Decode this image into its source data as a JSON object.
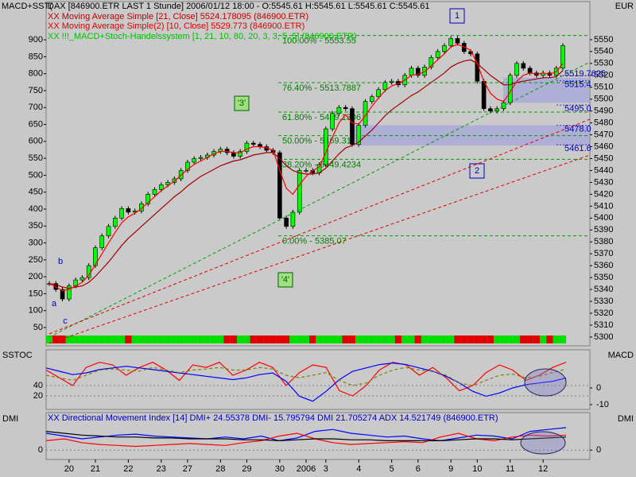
{
  "chart_data": [
    {
      "type": "candlestick",
      "title": "DAX [846900.ETR LAST 1 Stunde] 2006/01/12 18:00 - O:5545.61 H:5545.61 L:5545.61 C:5545.61",
      "y2_label": "MACD+SST(",
      "y_label": "EUR",
      "signal_name": "XX !!!_MACD+Stoch-Handelssystem [1, 21, 10, 80, 20, 3, 3, 5, 5] (846900.ETR)",
      "values": [
        5345,
        5340,
        5332,
        5343,
        5348,
        5350,
        5360,
        5375,
        5385,
        5393,
        5400,
        5408,
        5405,
        5406,
        5412,
        5420,
        5424,
        5428,
        5430,
        5433,
        5440,
        5447,
        5450,
        5451,
        5453,
        5456,
        5458,
        5455,
        5452,
        5456,
        5463,
        5462,
        5460,
        5457,
        5455,
        5400,
        5393,
        5405,
        5440,
        5440,
        5438,
        5445,
        5475,
        5488,
        5493,
        5492,
        5462,
        5478,
        5498,
        5502,
        5508,
        5514,
        5515,
        5512,
        5520,
        5526,
        5520,
        5527,
        5535,
        5540,
        5545,
        5551,
        5547,
        5540,
        5538,
        5515,
        5492,
        5490,
        5492,
        5497,
        5520,
        5530,
        5526,
        5522,
        5520,
        5522,
        5520,
        5526,
        5545
      ],
      "up_color": "#00ff00",
      "down_color": "#000000",
      "series": [
        {
          "name": "XX Moving Average Simple [21, Close] 5524.178095 (846900.ETR)",
          "color": "#a00000",
          "values": [
            5345,
            5344,
            5342,
            5341,
            5342,
            5343,
            5346,
            5351,
            5357,
            5363,
            5370,
            5377,
            5383,
            5388,
            5393,
            5398,
            5403,
            5408,
            5413,
            5418,
            5422,
            5427,
            5431,
            5435,
            5438,
            5441,
            5444,
            5446,
            5448,
            5449,
            5451,
            5453,
            5454,
            5455,
            5455,
            5450,
            5444,
            5440,
            5438,
            5437,
            5437,
            5438,
            5442,
            5448,
            5454,
            5459,
            5461,
            5464,
            5469,
            5474,
            5480,
            5486,
            5491,
            5495,
            5499,
            5503,
            5506,
            5510,
            5514,
            5518,
            5522,
            5527,
            5530,
            5532,
            5533,
            5530,
            5525,
            5520,
            5516,
            5512,
            5512,
            5514,
            5515,
            5516,
            5517,
            5518,
            5518,
            5519,
            5524
          ]
        },
        {
          "name": "XX Moving Average Simple(2) [10, Close] 5529.773 (846900.ETR)",
          "color": "#ff0000",
          "values": [
            5345,
            5342,
            5339,
            5340,
            5343,
            5346,
            5352,
            5361,
            5370,
            5379,
            5388,
            5396,
            5401,
            5404,
            5408,
            5413,
            5418,
            5423,
            5427,
            5431,
            5436,
            5441,
            5445,
            5448,
            5451,
            5454,
            5456,
            5456,
            5455,
            5455,
            5458,
            5460,
            5460,
            5459,
            5457,
            5440,
            5425,
            5420,
            5428,
            5435,
            5440,
            5443,
            5455,
            5468,
            5480,
            5487,
            5480,
            5479,
            5486,
            5494,
            5501,
            5507,
            5511,
            5513,
            5516,
            5520,
            5521,
            5523,
            5528,
            5533,
            5538,
            5544,
            5546,
            5544,
            5541,
            5530,
            5515,
            5505,
            5500,
            5498,
            5506,
            5515,
            5520,
            5522,
            5521,
            5522,
            5521,
            5523,
            5530
          ]
        }
      ],
      "ylim": [
        5292.6,
        5582
      ],
      "yticks": [
        5300,
        5310,
        5320,
        5330,
        5340,
        5350,
        5360,
        5370,
        5380,
        5390,
        5400,
        5410,
        5420,
        5430,
        5440,
        5450,
        5460,
        5470,
        5480,
        5490,
        5500,
        5510,
        5520,
        5530,
        5540,
        5550
      ],
      "y2lim": [
        -4,
        1013
      ],
      "y2ticks": [
        50,
        100,
        150,
        200,
        250,
        300,
        350,
        400,
        450,
        500,
        550,
        600,
        650,
        700,
        750,
        800,
        850,
        900
      ],
      "fib_levels": [
        {
          "value": 5553.55,
          "label": "100.00% - 5553.55"
        },
        {
          "value": 5513.7887,
          "label": "76.40% - 5513.7887"
        },
        {
          "value": 5489.1306,
          "label": "61.80% - 5489.1306"
        },
        {
          "value": 5469.31,
          "label": "50.00% - 5469.31"
        },
        {
          "value": 5449.4234,
          "label": "38.20% - 5449.4234"
        },
        {
          "value": 5385.07,
          "label": "0.00% - 5385.07"
        }
      ],
      "price_boxes": [
        {
          "value": 5519.7625,
          "label": "5519.7625"
        },
        {
          "value": 5515.4,
          "label": "5515.4"
        },
        {
          "value": 5495.0,
          "label": "5495.0"
        },
        {
          "value": 5478.0,
          "label": "5478.0"
        },
        {
          "value": 5461.6,
          "label": "5461.6"
        }
      ],
      "zones": [
        [
          5497,
          5518
        ],
        [
          5461,
          5478
        ]
      ],
      "annotations": [
        "1",
        "2",
        "'3'",
        "'4'",
        "a",
        "b",
        "c"
      ],
      "x_labels": [
        "20",
        "21",
        "22",
        "23",
        "27",
        "28",
        "29",
        "30",
        "2006",
        "3",
        "4",
        "5",
        "6",
        "9",
        "10",
        "11",
        "12"
      ],
      "x_label_index": [
        3,
        7,
        12,
        17,
        21,
        26,
        30,
        35,
        39,
        42,
        47,
        52,
        56,
        61,
        65,
        70,
        75
      ]
    },
    {
      "type": "line",
      "y_label": "SSTOC",
      "y2_label": "MACD",
      "series": [
        {
          "color": "#ff0000",
          "values": [
            70,
            55,
            40,
            75,
            85,
            80,
            60,
            75,
            85,
            70,
            50,
            80,
            75,
            85,
            60,
            70,
            85,
            75,
            40,
            65,
            80,
            75,
            30,
            20,
            40,
            70,
            85,
            80,
            60,
            75,
            55,
            30,
            40,
            65,
            80,
            70,
            50,
            60,
            75,
            85
          ]
        },
        {
          "color": "#0000ff",
          "axis": "y2",
          "values": [
            12,
            10,
            8,
            9,
            11,
            12,
            13,
            12,
            11,
            10,
            9,
            8,
            7,
            6,
            5,
            6,
            8,
            9,
            4,
            -5,
            -8,
            -2,
            5,
            10,
            12,
            14,
            15,
            14,
            12,
            10,
            7,
            3,
            -2,
            -5,
            -3,
            0,
            2,
            3,
            4,
            6
          ]
        },
        {
          "color": "#808000",
          "dashed": true,
          "values": [
            60,
            55,
            50,
            60,
            70,
            72,
            70,
            68,
            75,
            70,
            65,
            70,
            72,
            75,
            70,
            70,
            75,
            72,
            60,
            55,
            60,
            65,
            50,
            40,
            45,
            60,
            70,
            75,
            70,
            68,
            60,
            45,
            40,
            50,
            60,
            62,
            55,
            58,
            65,
            72
          ]
        }
      ],
      "ylim": [
        -6.2,
        109.2
      ],
      "yticks": [
        20,
        40
      ],
      "y2lim": [
        -12.9,
        22.9
      ],
      "y2ticks": [
        -10,
        0
      ]
    },
    {
      "type": "line",
      "y_label": "DMI",
      "y2_label": "DMI",
      "legend": "XX Directional Movement Index [14] DMI+ 24.55378 DMI- 15.795794 DMI 21.705274 ADX 14.521749 (846900.ETR)",
      "series": [
        {
          "color": "#0000ff",
          "values": [
            18,
            15,
            12,
            14,
            16,
            17,
            15,
            14,
            13,
            12,
            14,
            12,
            15,
            10,
            13,
            20,
            22,
            18,
            16,
            14,
            15,
            12,
            10,
            13,
            16,
            15,
            12,
            20,
            22,
            24
          ]
        },
        {
          "color": "#ff0000",
          "values": [
            10,
            12,
            8,
            6,
            5,
            4,
            5,
            6,
            7,
            6,
            5,
            8,
            10,
            15,
            18,
            12,
            8,
            6,
            7,
            8,
            9,
            8,
            14,
            18,
            12,
            10,
            14,
            16,
            15,
            16
          ]
        },
        {
          "color": "#000000",
          "values": [
            20,
            18,
            16,
            15,
            14,
            14,
            13,
            13,
            12,
            12,
            12,
            11,
            11,
            10,
            11,
            12,
            12,
            11,
            11,
            10,
            10,
            10,
            10,
            11,
            12,
            12,
            11,
            12,
            13,
            14
          ]
        }
      ],
      "ylim": [
        -10,
        40
      ],
      "yticks": [
        0
      ],
      "y2lim": [
        -10,
        40
      ],
      "y2ticks": [
        0
      ]
    }
  ]
}
